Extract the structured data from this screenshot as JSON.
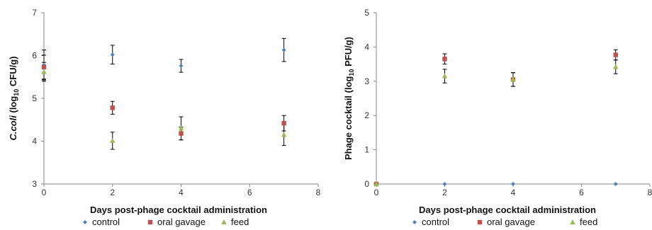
{
  "chart_data": [
    {
      "type": "scatter",
      "xlabel": "Days post-phage cocktail administration",
      "ylabel": "C.coli (log10 CFU/g)",
      "ylabel_parts": {
        "italic": "C.coli",
        "pre": " (log",
        "sub": "10",
        "post": " CFU/g)"
      },
      "xlim": [
        0,
        8
      ],
      "ylim": [
        3,
        7
      ],
      "xticks": [
        "0",
        "2",
        "4",
        "6",
        "8"
      ],
      "yticks": [
        "3",
        "4",
        "5",
        "6",
        "7"
      ],
      "grid": false,
      "legend_position": "bottom",
      "series": [
        {
          "name": "control",
          "color": "#4F81BD",
          "marker": "diamond",
          "x": [
            0,
            2,
            4,
            7
          ],
          "y": [
            5.78,
            6.02,
            5.76,
            6.13
          ],
          "err": [
            0.35,
            0.22,
            0.15,
            0.27
          ]
        },
        {
          "name": "oral gavage",
          "color": "#C0504D",
          "marker": "square",
          "x": [
            0,
            2,
            4,
            7
          ],
          "y": [
            5.73,
            4.78,
            4.18,
            4.42
          ],
          "err": [
            0.28,
            0.15,
            0.15,
            0.18
          ]
        },
        {
          "name": "feed",
          "color": "#9BBB59",
          "marker": "triangle",
          "x": [
            0,
            2,
            4,
            7
          ],
          "y": [
            5.62,
            4.01,
            4.3,
            4.15
          ],
          "err": [
            0.22,
            0.2,
            0.27,
            0.25
          ]
        }
      ]
    },
    {
      "type": "scatter",
      "xlabel": "Days post-phage cocktail administration",
      "ylabel": "Phage cocktail (log10 PFU/g)",
      "ylabel_parts": {
        "italic": "",
        "pre": "Phage cocktail (log",
        "sub": "10",
        "post": " PFU/g)"
      },
      "xlim": [
        0,
        8
      ],
      "ylim": [
        0,
        5
      ],
      "xticks": [
        "0",
        "2",
        "4",
        "6",
        "8"
      ],
      "yticks": [
        "0",
        "1",
        "2",
        "3",
        "4",
        "5"
      ],
      "grid": false,
      "legend_position": "bottom",
      "series": [
        {
          "name": "control",
          "color": "#4F81BD",
          "marker": "diamond",
          "x": [
            0,
            2,
            4,
            7
          ],
          "y": [
            0,
            0,
            0,
            0
          ],
          "err": [
            0,
            0,
            0,
            0
          ]
        },
        {
          "name": "oral gavage",
          "color": "#C0504D",
          "marker": "square",
          "x": [
            0,
            2,
            4,
            7
          ],
          "y": [
            0,
            3.65,
            3.05,
            3.77
          ],
          "err": [
            0,
            0.15,
            0.2,
            0.15
          ]
        },
        {
          "name": "feed",
          "color": "#9BBB59",
          "marker": "triangle",
          "x": [
            0,
            2,
            4,
            7
          ],
          "y": [
            0,
            3.15,
            3.05,
            3.42
          ],
          "err": [
            0,
            0.2,
            0.2,
            0.2
          ]
        }
      ]
    }
  ]
}
